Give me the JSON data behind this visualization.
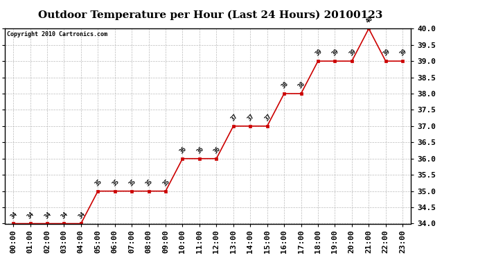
{
  "title": "Outdoor Temperature per Hour (Last 24 Hours) 20100123",
  "copyright": "Copyright 2010 Cartronics.com",
  "hours": [
    "00:00",
    "01:00",
    "02:00",
    "03:00",
    "04:00",
    "05:00",
    "06:00",
    "07:00",
    "08:00",
    "09:00",
    "10:00",
    "11:00",
    "12:00",
    "13:00",
    "14:00",
    "15:00",
    "16:00",
    "17:00",
    "18:00",
    "19:00",
    "20:00",
    "21:00",
    "22:00",
    "23:00"
  ],
  "temperatures": [
    34,
    34,
    34,
    34,
    34,
    35,
    35,
    35,
    35,
    35,
    36,
    36,
    36,
    37,
    37,
    37,
    38,
    38,
    39,
    39,
    39,
    40,
    39,
    39
  ],
  "ylim_min": 34.0,
  "ylim_max": 40.0,
  "line_color": "#cc0000",
  "marker_color": "#cc0000",
  "bg_color": "#ffffff",
  "grid_color": "#aaaaaa",
  "title_fontsize": 11,
  "copyright_fontsize": 6,
  "label_fontsize": 6,
  "tick_fontsize": 8
}
